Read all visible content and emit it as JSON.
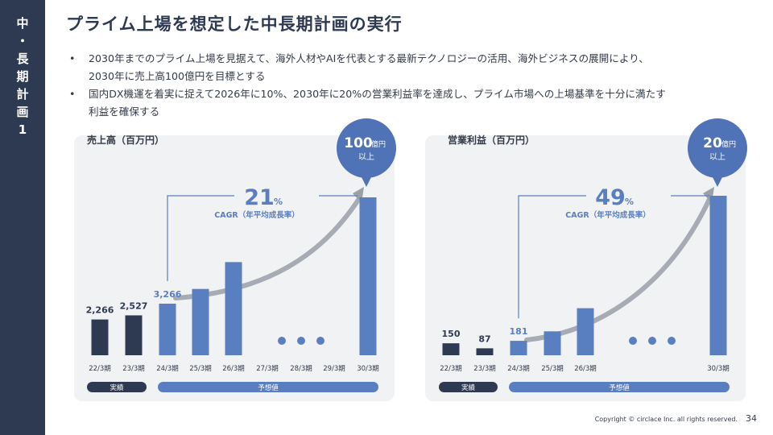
{
  "sidebar": {
    "chars": [
      "中",
      "・",
      "長",
      "期",
      "計",
      "画",
      "1"
    ]
  },
  "title": "プライム上場を想定した中長期計画の実行",
  "bullets": [
    {
      "line1": "2030年までのプライム上場を見据えて、海外人材やAIを代表とする最新テクノロジーの活用、海外ビジネスの展開により、",
      "line2": "2030年に売上高100億円を目標とする"
    },
    {
      "line1": "国内DX機運を着実に捉えて2026年に10%、2030年に20%の営業利益率を達成し、プライム市場への上場基準を十分に満たす",
      "line2": "利益を確保する"
    }
  ],
  "footer": {
    "copyright": "Copyright © circlace Inc. all rights reserved.",
    "page": "34"
  },
  "colors": {
    "actual": "#2e3a52",
    "forecast": "#5a7fc0",
    "bubble": "#4f73b6",
    "panel": "#f1f2f4",
    "curve": "#9aa0a8"
  },
  "chart_data": [
    {
      "type": "bar",
      "title": "売上高（百万円）",
      "unit": "百万円",
      "categories": [
        "22/3期",
        "23/3期",
        "24/3期",
        "25/3期",
        "26/3期",
        "27/3期",
        "28/3期",
        "29/3期",
        "30/3期"
      ],
      "values": [
        2266,
        2527,
        3266,
        4200,
        5900,
        null,
        null,
        null,
        10000
      ],
      "data_labels": [
        "2,266",
        "2,527",
        "3,266",
        "",
        "",
        "",
        "",
        "",
        ""
      ],
      "actual_categories": [
        "22/3期",
        "23/3期"
      ],
      "forecast_categories": [
        "24/3期",
        "25/3期",
        "26/3期",
        "27/3期",
        "28/3期",
        "29/3期",
        "30/3期"
      ],
      "actual_label": "実績",
      "forecast_label": "予想値",
      "ellipsis_at": [
        "27/3期",
        "28/3期",
        "29/3期"
      ],
      "bubble": {
        "value": "100",
        "unit": "億円",
        "suffix": "以上"
      },
      "cagr": {
        "value": "21",
        "unit": "%",
        "label": "CAGR（年平均成長率）"
      },
      "ylim": [
        0,
        10000
      ]
    },
    {
      "type": "bar",
      "title": "営業利益（百万円）",
      "unit": "百万円",
      "categories": [
        "22/3期",
        "23/3期",
        "24/3期",
        "25/3期",
        "26/3期",
        "30/3期"
      ],
      "values": [
        150,
        87,
        181,
        300,
        590,
        2000
      ],
      "data_labels": [
        "150",
        "87",
        "181",
        "",
        "",
        ""
      ],
      "actual_categories": [
        "22/3期",
        "23/3期"
      ],
      "forecast_categories": [
        "24/3期",
        "25/3期",
        "26/3期",
        "30/3期"
      ],
      "actual_label": "実績",
      "forecast_label": "予想値",
      "ellipsis_after": "26/3期",
      "bubble": {
        "value": "20",
        "unit": "億円",
        "suffix": "以上"
      },
      "cagr": {
        "value": "49",
        "unit": "%",
        "label": "CAGR（年平均成長率）"
      },
      "ylim": [
        0,
        2000
      ]
    }
  ]
}
